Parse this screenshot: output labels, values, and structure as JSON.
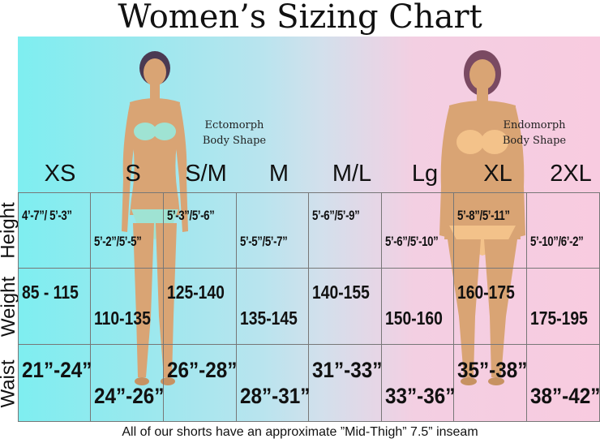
{
  "title": "Women’s Sizing Chart",
  "body_shapes": {
    "left": {
      "line1": "Ectomorph",
      "line2": "Body Shape"
    },
    "right": {
      "line1": "Endomorph",
      "line2": "Body Shape"
    }
  },
  "sizes": [
    "XS",
    "S",
    "S/M",
    "M",
    "M/L",
    "Lg",
    "XL",
    "2XL"
  ],
  "rows": [
    {
      "label": "Height",
      "values": [
        "4’-7”/ 5’-3”",
        "5’-2”/5’-5”",
        "5’-3”/5’-6”",
        "5’-5”/5’-7”",
        "5’-6”/5’-9”",
        "5’-6”/5’-10”",
        "5’-8”/5’-11”",
        "5’-10”/6’-2”"
      ]
    },
    {
      "label": "Weight",
      "values": [
        "85 - 115",
        "110-135",
        "125-140",
        "135-145",
        "140-155",
        "150-160",
        "160-175",
        "175-195"
      ]
    },
    {
      "label": "Waist",
      "values": [
        "21”-24”",
        "24”-26”",
        "26”-28”",
        "28”-31”",
        "31”-33”",
        "33”-36”",
        "35”-38”",
        "38”-42”"
      ]
    }
  ],
  "footnote": "All of our shorts have an approximate ”Mid-Thigh” 7.5” inseam",
  "colors": {
    "left_bg": "#7eeef0",
    "right_bg": "#f8cbe0",
    "skin": "#d9a474",
    "hair": "#4b3a52"
  }
}
